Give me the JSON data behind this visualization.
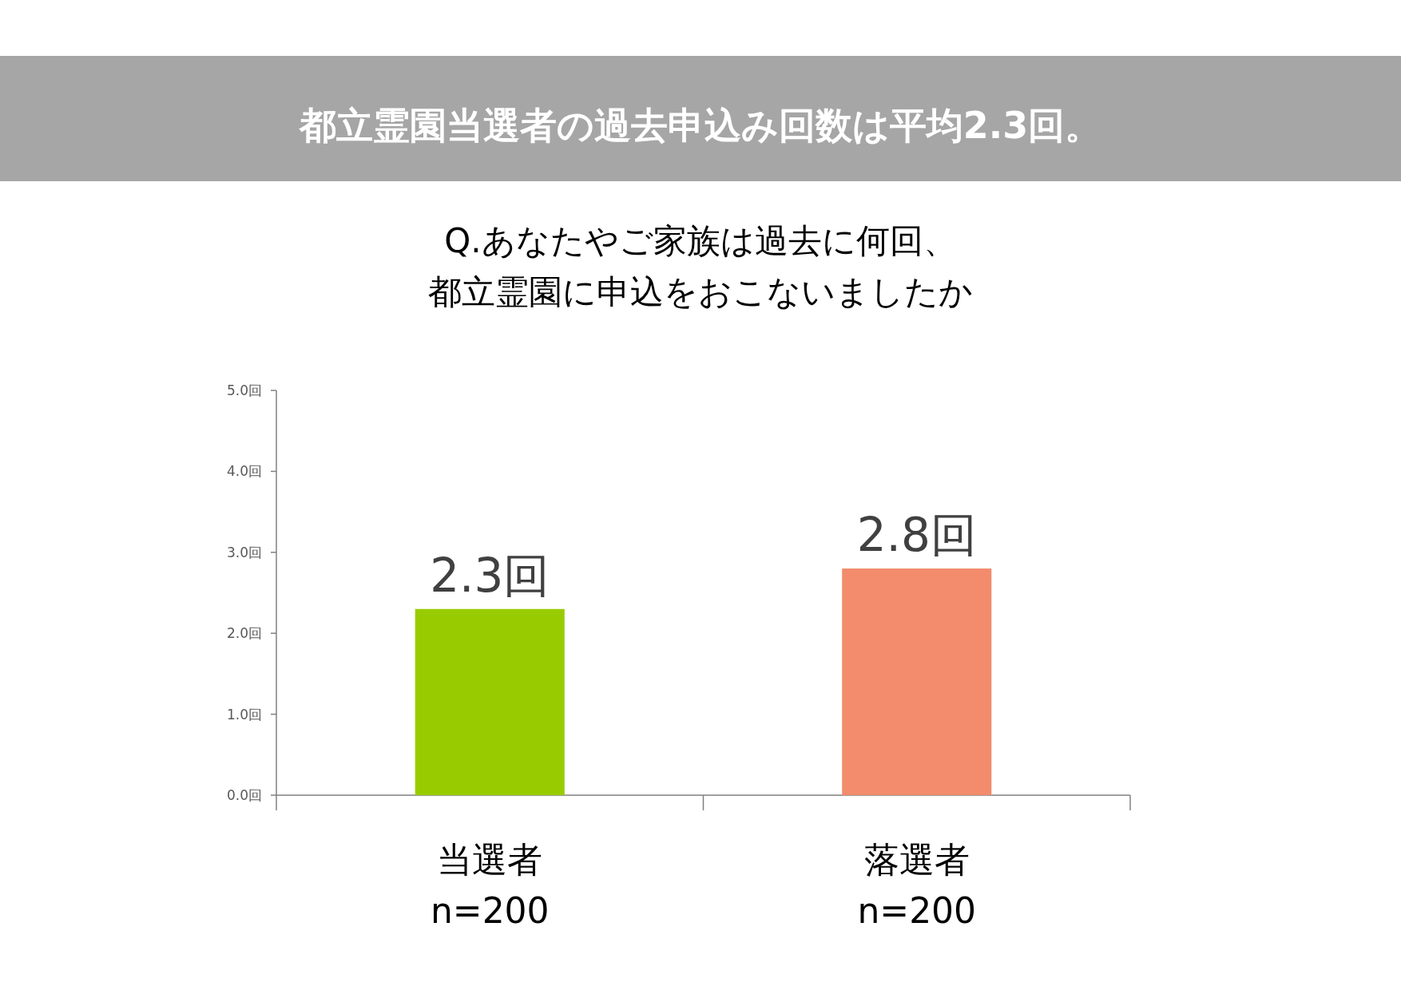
{
  "chart_data": {
    "type": "bar",
    "title": "都立霊園当選者の過去申込み回数は平均2.3回。",
    "subtitle": [
      "Q.あなたやご家族は過去に何回、",
      "都立霊園に申込をおこないましたか"
    ],
    "categories": [
      "当選者\nn=200",
      "落選者\nn=200"
    ],
    "values": [
      2.3,
      2.8
    ],
    "colors": [
      "#99cc00",
      "#f28c6c"
    ],
    "value_labels": [
      "2.3回",
      "2.8回"
    ],
    "ylim": [
      0,
      5
    ],
    "yticks": [
      {
        "value": 0,
        "label": "0.0回"
      },
      {
        "value": 1,
        "label": "1.0回"
      },
      {
        "value": 2,
        "label": "2.0回"
      },
      {
        "value": 3,
        "label": "3.0回"
      },
      {
        "value": 4,
        "label": "4.0回"
      },
      {
        "value": 5,
        "label": "5.0回"
      }
    ]
  }
}
